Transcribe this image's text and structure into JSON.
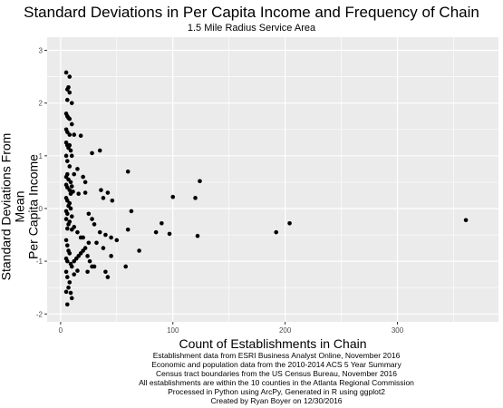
{
  "chart_data": {
    "type": "scatter",
    "title": "Standard Deviations in Per Capita Income and Frequency of Chain",
    "subtitle": "1.5 Mile Radius Service Area",
    "xlabel": "Count of Establishments in Chain",
    "ylabel": [
      "Standard Deviations From Mean",
      "Per Capita Income"
    ],
    "xlim": [
      -12,
      390
    ],
    "ylim": [
      -2.15,
      3.25
    ],
    "xticks": [
      0,
      100,
      200,
      300
    ],
    "yticks": [
      -2,
      -1,
      0,
      1,
      2,
      3
    ],
    "grid": true,
    "point_color": "#000000",
    "panel_color": "#ebebeb",
    "grid_color": "#ffffff",
    "points": [
      [
        5,
        2.58
      ],
      [
        8,
        2.5
      ],
      [
        7,
        2.3
      ],
      [
        6,
        2.26
      ],
      [
        8,
        2.2
      ],
      [
        6,
        2.06
      ],
      [
        10,
        2.0
      ],
      [
        5,
        1.8
      ],
      [
        6,
        1.75
      ],
      [
        7,
        1.72
      ],
      [
        8,
        1.7
      ],
      [
        10,
        1.6
      ],
      [
        5,
        1.5
      ],
      [
        6,
        1.45
      ],
      [
        8,
        1.4
      ],
      [
        12,
        1.4
      ],
      [
        18,
        1.38
      ],
      [
        5,
        1.25
      ],
      [
        6,
        1.2
      ],
      [
        8,
        1.2
      ],
      [
        7,
        1.15
      ],
      [
        9,
        1.1
      ],
      [
        10,
        1.0
      ],
      [
        5,
        1.0
      ],
      [
        6,
        0.9
      ],
      [
        8,
        0.8
      ],
      [
        15,
        0.75
      ],
      [
        12,
        0.65
      ],
      [
        6,
        0.65
      ],
      [
        5,
        0.6
      ],
      [
        7,
        0.55
      ],
      [
        9,
        0.5
      ],
      [
        5,
        0.45
      ],
      [
        10,
        0.42
      ],
      [
        6,
        0.4
      ],
      [
        8,
        0.35
      ],
      [
        11,
        0.32
      ],
      [
        9,
        0.28
      ],
      [
        16,
        0.28
      ],
      [
        22,
        0.3
      ],
      [
        35,
        1.1
      ],
      [
        28,
        1.05
      ],
      [
        20,
        0.6
      ],
      [
        22,
        0.5
      ],
      [
        36,
        0.35
      ],
      [
        42,
        0.3
      ],
      [
        46,
        0.15
      ],
      [
        38,
        0.2
      ],
      [
        60,
        0.7
      ],
      [
        100,
        0.22
      ],
      [
        120,
        0.2
      ],
      [
        124,
        0.52
      ],
      [
        63,
        -0.05
      ],
      [
        5,
        0.2
      ],
      [
        6,
        0.15
      ],
      [
        8,
        0.1
      ],
      [
        7,
        0.05
      ],
      [
        9,
        0.0
      ],
      [
        5,
        -0.05
      ],
      [
        6,
        -0.1
      ],
      [
        10,
        -0.15
      ],
      [
        5,
        -0.2
      ],
      [
        8,
        -0.25
      ],
      [
        7,
        -0.3
      ],
      [
        6,
        -0.38
      ],
      [
        10,
        -0.4
      ],
      [
        12,
        -0.35
      ],
      [
        15,
        -0.45
      ],
      [
        18,
        -0.55
      ],
      [
        25,
        -0.1
      ],
      [
        28,
        -0.2
      ],
      [
        30,
        -0.3
      ],
      [
        35,
        -0.45
      ],
      [
        40,
        -0.5
      ],
      [
        45,
        -0.55
      ],
      [
        32,
        -0.65
      ],
      [
        38,
        -0.75
      ],
      [
        45,
        -0.9
      ],
      [
        50,
        -0.6
      ],
      [
        25,
        -0.65
      ],
      [
        22,
        -0.75
      ],
      [
        20,
        -0.55
      ],
      [
        5,
        -0.6
      ],
      [
        6,
        -0.7
      ],
      [
        7,
        -0.8
      ],
      [
        8,
        -0.85
      ],
      [
        5,
        -0.95
      ],
      [
        6,
        -1.0
      ],
      [
        9,
        -1.05
      ],
      [
        10,
        -1.1
      ],
      [
        12,
        -1.0
      ],
      [
        14,
        -0.95
      ],
      [
        16,
        -0.9
      ],
      [
        18,
        -0.85
      ],
      [
        20,
        -0.8
      ],
      [
        24,
        -0.9
      ],
      [
        26,
        -1.0
      ],
      [
        28,
        -1.1
      ],
      [
        24,
        -1.2
      ],
      [
        30,
        -1.1
      ],
      [
        40,
        -1.2
      ],
      [
        42,
        -1.3
      ],
      [
        58,
        -1.1
      ],
      [
        60,
        -0.4
      ],
      [
        70,
        -0.8
      ],
      [
        85,
        -0.45
      ],
      [
        90,
        -0.28
      ],
      [
        97,
        -0.48
      ],
      [
        122,
        -0.52
      ],
      [
        192,
        -0.45
      ],
      [
        204,
        -0.28
      ],
      [
        361,
        -0.22
      ],
      [
        5,
        -1.2
      ],
      [
        6,
        -1.3
      ],
      [
        8,
        -1.4
      ],
      [
        7,
        -1.5
      ],
      [
        5,
        -1.58
      ],
      [
        9,
        -1.6
      ],
      [
        6,
        -1.82
      ],
      [
        10,
        -1.7
      ],
      [
        12,
        -1.25
      ],
      [
        15,
        -1.18
      ]
    ]
  },
  "caption": [
    "Establishment data from ESRI Business Analyst Online, November 2016",
    "Economic and population data from the 2010-2014 ACS 5 Year Summary",
    "Census tract boundaries from the US Census Bureau, November 2016",
    "All establishments are within the 10 counties in the Atlanta Regional Commission",
    "Processed in Python using ArcPy, Generated in R using ggplot2",
    "Created by Ryan Boyer on 12/30/2016"
  ]
}
